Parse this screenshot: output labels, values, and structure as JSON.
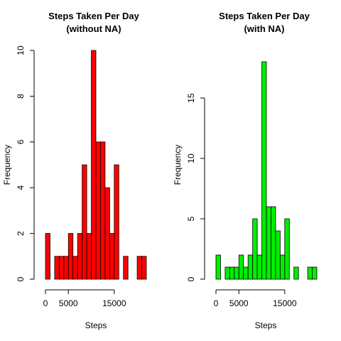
{
  "chart_data": [
    {
      "type": "bar",
      "title_line1": "Steps Taken Per Day",
      "title_line2": "(without NA)",
      "xlabel": "Steps",
      "ylabel": "Frequency",
      "bar_color": "#ff0000",
      "bin_width": 1000,
      "bin_start": 0,
      "values": [
        2,
        0,
        1,
        1,
        1,
        2,
        1,
        2,
        5,
        2,
        10,
        6,
        6,
        4,
        2,
        5,
        0,
        1,
        0,
        0,
        1,
        1
      ],
      "xlim": [
        0,
        22000
      ],
      "ylim": [
        0,
        10
      ],
      "xticks": [
        0,
        5000,
        15000
      ],
      "yticks": [
        0,
        2,
        4,
        6,
        8,
        10
      ]
    },
    {
      "type": "bar",
      "title_line1": "Steps Taken Per Day",
      "title_line2": "(with NA)",
      "xlabel": "Steps",
      "ylabel": "Frequency",
      "bar_color": "#00ee00",
      "bin_width": 1000,
      "bin_start": 0,
      "values": [
        2,
        0,
        1,
        1,
        1,
        2,
        1,
        2,
        5,
        2,
        18,
        6,
        6,
        4,
        2,
        5,
        0,
        1,
        0,
        0,
        1,
        1
      ],
      "xlim": [
        0,
        22000
      ],
      "ylim": [
        0,
        18
      ],
      "xticks": [
        0,
        5000,
        15000
      ],
      "yticks": [
        0,
        5,
        10,
        15
      ]
    }
  ]
}
